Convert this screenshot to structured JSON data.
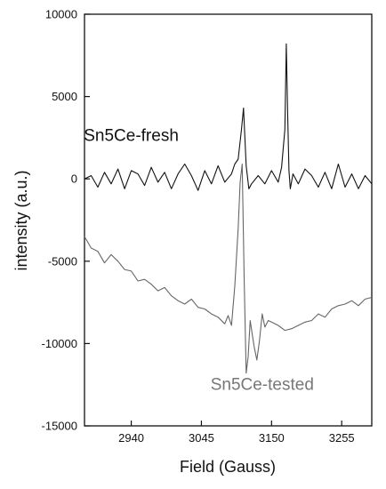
{
  "chart_data": {
    "type": "line",
    "title": "",
    "xlabel": "Field (Gauss)",
    "ylabel": "intensity (a.u.)",
    "xlim": [
      2870,
      3300
    ],
    "ylim": [
      -15000,
      10000
    ],
    "x_ticks": [
      2940,
      3045,
      3150,
      3255
    ],
    "y_ticks": [
      10000,
      5000,
      0,
      -5000,
      -10000,
      -15000
    ],
    "grid": false,
    "legend": "none",
    "series": [
      {
        "name": "Sn5Ce-fresh",
        "color": "#111111",
        "x": [
          2870,
          2880,
          2890,
          2900,
          2910,
          2920,
          2930,
          2940,
          2950,
          2960,
          2970,
          2980,
          2990,
          3000,
          3010,
          3020,
          3030,
          3040,
          3050,
          3060,
          3070,
          3080,
          3090,
          3095,
          3100,
          3105,
          3108,
          3112,
          3116,
          3120,
          3130,
          3140,
          3150,
          3160,
          3165,
          3170,
          3172,
          3174,
          3176,
          3178,
          3182,
          3190,
          3200,
          3210,
          3220,
          3230,
          3240,
          3250,
          3260,
          3270,
          3280,
          3290,
          3300
        ],
        "y": [
          0,
          200,
          -500,
          400,
          -300,
          600,
          -600,
          500,
          300,
          -400,
          700,
          -200,
          400,
          -600,
          300,
          900,
          200,
          -700,
          500,
          -300,
          800,
          -200,
          300,
          900,
          1200,
          3000,
          4300,
          800,
          -600,
          -300,
          200,
          -300,
          500,
          -200,
          700,
          3000,
          8200,
          4000,
          500,
          -600,
          300,
          -300,
          600,
          200,
          -500,
          400,
          -600,
          900,
          -500,
          300,
          -600,
          200,
          -300
        ]
      },
      {
        "name": "Sn5Ce-tested",
        "color": "#666666",
        "x": [
          2870,
          2880,
          2890,
          2900,
          2910,
          2920,
          2930,
          2940,
          2950,
          2960,
          2970,
          2980,
          2990,
          3000,
          3010,
          3020,
          3030,
          3040,
          3050,
          3060,
          3070,
          3080,
          3085,
          3090,
          3095,
          3100,
          3103,
          3106,
          3109,
          3112,
          3115,
          3118,
          3121,
          3124,
          3128,
          3132,
          3136,
          3140,
          3145,
          3150,
          3160,
          3170,
          3180,
          3190,
          3200,
          3210,
          3220,
          3230,
          3240,
          3250,
          3260,
          3270,
          3280,
          3290,
          3300
        ],
        "y": [
          -3500,
          -4200,
          -4400,
          -5100,
          -4600,
          -5000,
          -5500,
          -5600,
          -6200,
          -6100,
          -6400,
          -6800,
          -6600,
          -7100,
          -7400,
          -7600,
          -7300,
          -7800,
          -7900,
          -8200,
          -8400,
          -8800,
          -8300,
          -8900,
          -6500,
          -3000,
          -200,
          900,
          -6000,
          -11800,
          -10800,
          -8600,
          -9400,
          -10200,
          -11000,
          -9800,
          -8200,
          -9000,
          -8600,
          -8700,
          -8900,
          -9200,
          -9100,
          -8900,
          -8700,
          -8600,
          -8200,
          -8400,
          -7900,
          -7700,
          -7600,
          -7400,
          -7700,
          -7300,
          -7200
        ]
      }
    ],
    "annotations": [
      {
        "text": "Sn5Ce-fresh",
        "x": 2940,
        "y": 2300,
        "color": "#111111"
      },
      {
        "text": "Sn5Ce-tested",
        "x": 3136,
        "y": -12800,
        "color": "#777777"
      }
    ]
  }
}
